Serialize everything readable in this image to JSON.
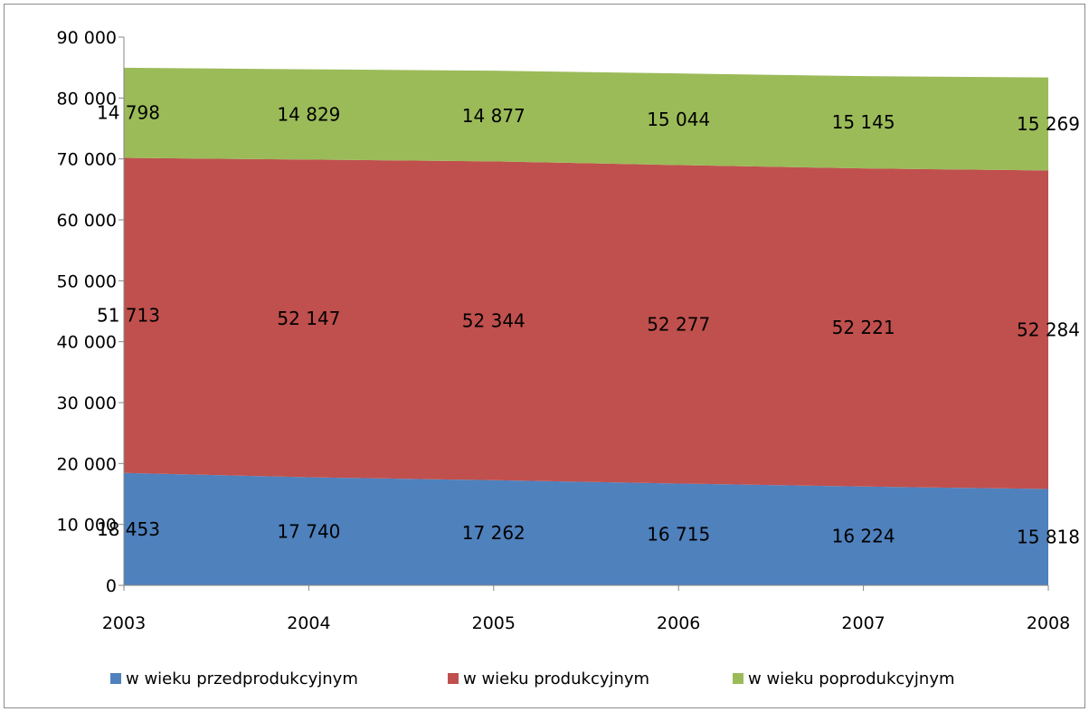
{
  "chart_data": {
    "type": "area",
    "stacked": true,
    "x": [
      "2003",
      "2004",
      "2005",
      "2006",
      "2007",
      "2008"
    ],
    "series": [
      {
        "name": "w wieku przedprodukcyjnym",
        "color": "#4f81bd",
        "values": [
          18453,
          17740,
          17262,
          16715,
          16224,
          15818
        ],
        "labels": [
          "18 453",
          "17 740",
          "17 262",
          "16 715",
          "16 224",
          "15 818"
        ]
      },
      {
        "name": "w wieku produkcyjnym",
        "color": "#c0504d",
        "values": [
          51713,
          52147,
          52344,
          52277,
          52221,
          52284
        ],
        "labels": [
          "51 713",
          "52 147",
          "52 344",
          "52 277",
          "52 221",
          "52 284"
        ]
      },
      {
        "name": "w wieku poprodukcyjnym",
        "color": "#9bbb59",
        "values": [
          14798,
          14829,
          14877,
          15044,
          15145,
          15269
        ],
        "labels": [
          "14 798",
          "14 829",
          "14 877",
          "15 044",
          "15 145",
          "15 269"
        ]
      }
    ],
    "ylim": [
      0,
      90000
    ],
    "yticks": [
      0,
      10000,
      20000,
      30000,
      40000,
      50000,
      60000,
      70000,
      80000,
      90000
    ],
    "ytick_labels": [
      "0",
      "10 000",
      "20 000",
      "30 000",
      "40 000",
      "50 000",
      "60 000",
      "70 000",
      "80 000",
      "90 000"
    ],
    "grid": false,
    "legend_position": "bottom"
  }
}
